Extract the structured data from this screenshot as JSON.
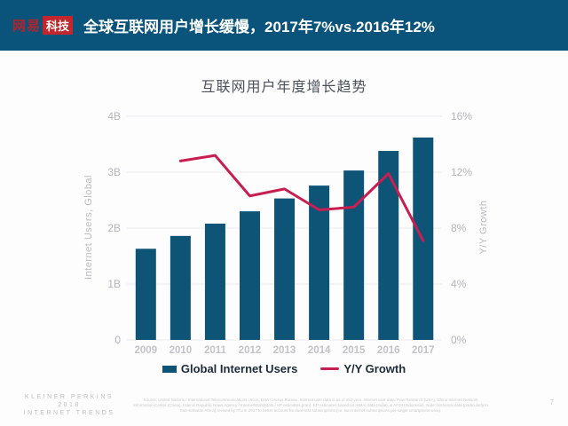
{
  "header": {
    "logo_primary": "网易",
    "logo_secondary": "科技",
    "title": "全球互联网用户增长缓慢，2017年7%vs.2016年12%"
  },
  "chart_data": {
    "type": "bar",
    "title": "互联网用户年度增长趋势",
    "categories": [
      "2009",
      "2010",
      "2011",
      "2012",
      "2013",
      "2014",
      "2015",
      "2016",
      "2017"
    ],
    "series": [
      {
        "name": "Global Internet Users",
        "type": "bar",
        "axis": "left",
        "unit": "B",
        "values": [
          1.63,
          1.86,
          2.08,
          2.3,
          2.53,
          2.76,
          3.03,
          3.38,
          3.62
        ]
      },
      {
        "name": "Y/Y Growth",
        "type": "line",
        "axis": "right",
        "unit": "%",
        "values": [
          null,
          12.8,
          13.2,
          10.3,
          10.8,
          9.3,
          9.5,
          11.9,
          7.1
        ]
      }
    ],
    "ylabel_left": "Internet Users, Global",
    "ylabel_right": "Y/Y Growth",
    "yticks_left": [
      "0",
      "1B",
      "2B",
      "3B",
      "4B"
    ],
    "yticks_right": [
      "0%",
      "4%",
      "8%",
      "12%",
      "16%"
    ],
    "ylim_left": [
      0,
      4
    ],
    "ylim_right": [
      0,
      16
    ],
    "grid": true,
    "legend_position": "bottom"
  },
  "colors": {
    "header_bg": "#0a547c",
    "bar": "#0e5476",
    "line": "#c81e50",
    "logo_red": "#c1272d",
    "grid": "#ebebee",
    "tick_text": "#b6b6be",
    "year_text": "#c3c3c9"
  },
  "footer": {
    "brand_lines": [
      "KLEINER PERKINS",
      "2018",
      "INTERNET TRENDS"
    ],
    "source": "Source: United Nations / International Telecommunications Union, USA Census Bureau. Internet user data is as of mid-year. Internet user data: Pew Research (USA), China Internet Network Information Center (China), Islamic Republic News Agency / InternetWorldStats / KP estimates (Iran). KP estimates based on IAMAI data (India), & APJII (Indonesia). Note: Historical data (particularly in Sub-Saharan Africa) revised by ITU in 2017 to better account for dual-SIM subscriptions (i.e. two Internet subscriptions per single smartphone user).",
    "page_number": "7"
  }
}
